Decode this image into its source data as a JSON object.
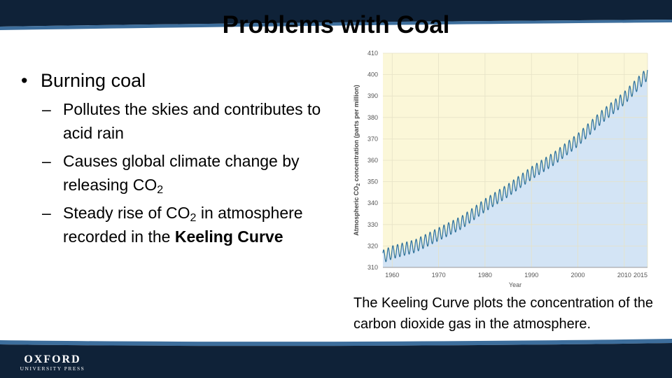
{
  "slide": {
    "title": "Problems with Coal",
    "bullet_main": "Burning coal",
    "sub_bullets": [
      {
        "text": "Pollutes the skies and contributes to acid rain"
      },
      {
        "text": "Causes global climate change by releasing CO",
        "sub": "2"
      },
      {
        "pre": "Steady rise of CO",
        "sub": "2",
        "post": " in atmosphere recorded in the ",
        "bold": "Keeling Curve"
      }
    ],
    "caption": "The Keeling Curve plots the concentration of the carbon dioxide gas in the atmosphere."
  },
  "logo": {
    "line1": "OXFORD",
    "line2": "UNIVERSITY PRESS"
  },
  "colors": {
    "band": "#0f2238",
    "accent": "#3d6e9c",
    "chart_upper": "#fbf7d8",
    "chart_lower": "#d3e4f5",
    "line": "#2b6f99"
  },
  "chart_data": {
    "type": "line",
    "title": "",
    "xlabel": "Year",
    "ylabel_parts": [
      "Atmospheric CO",
      "2",
      " concentration (parts per million)"
    ],
    "xlim": [
      1958,
      2015
    ],
    "ylim": [
      310,
      410
    ],
    "xticks": [
      1960,
      1970,
      1980,
      1990,
      2000,
      2010,
      2015
    ],
    "yticks": [
      310,
      320,
      330,
      340,
      350,
      360,
      370,
      380,
      390,
      400,
      410
    ],
    "grid": true,
    "seasonal_amplitude_ppm": 3,
    "series": [
      {
        "x": [
          1958,
          1960,
          1965,
          1970,
          1975,
          1980,
          1985,
          1990,
          1995,
          2000,
          2005,
          2010,
          2015
        ],
        "values": [
          315,
          317,
          320,
          325.5,
          331,
          339,
          346,
          354,
          361,
          369.5,
          380,
          389,
          400.5
        ]
      }
    ]
  }
}
